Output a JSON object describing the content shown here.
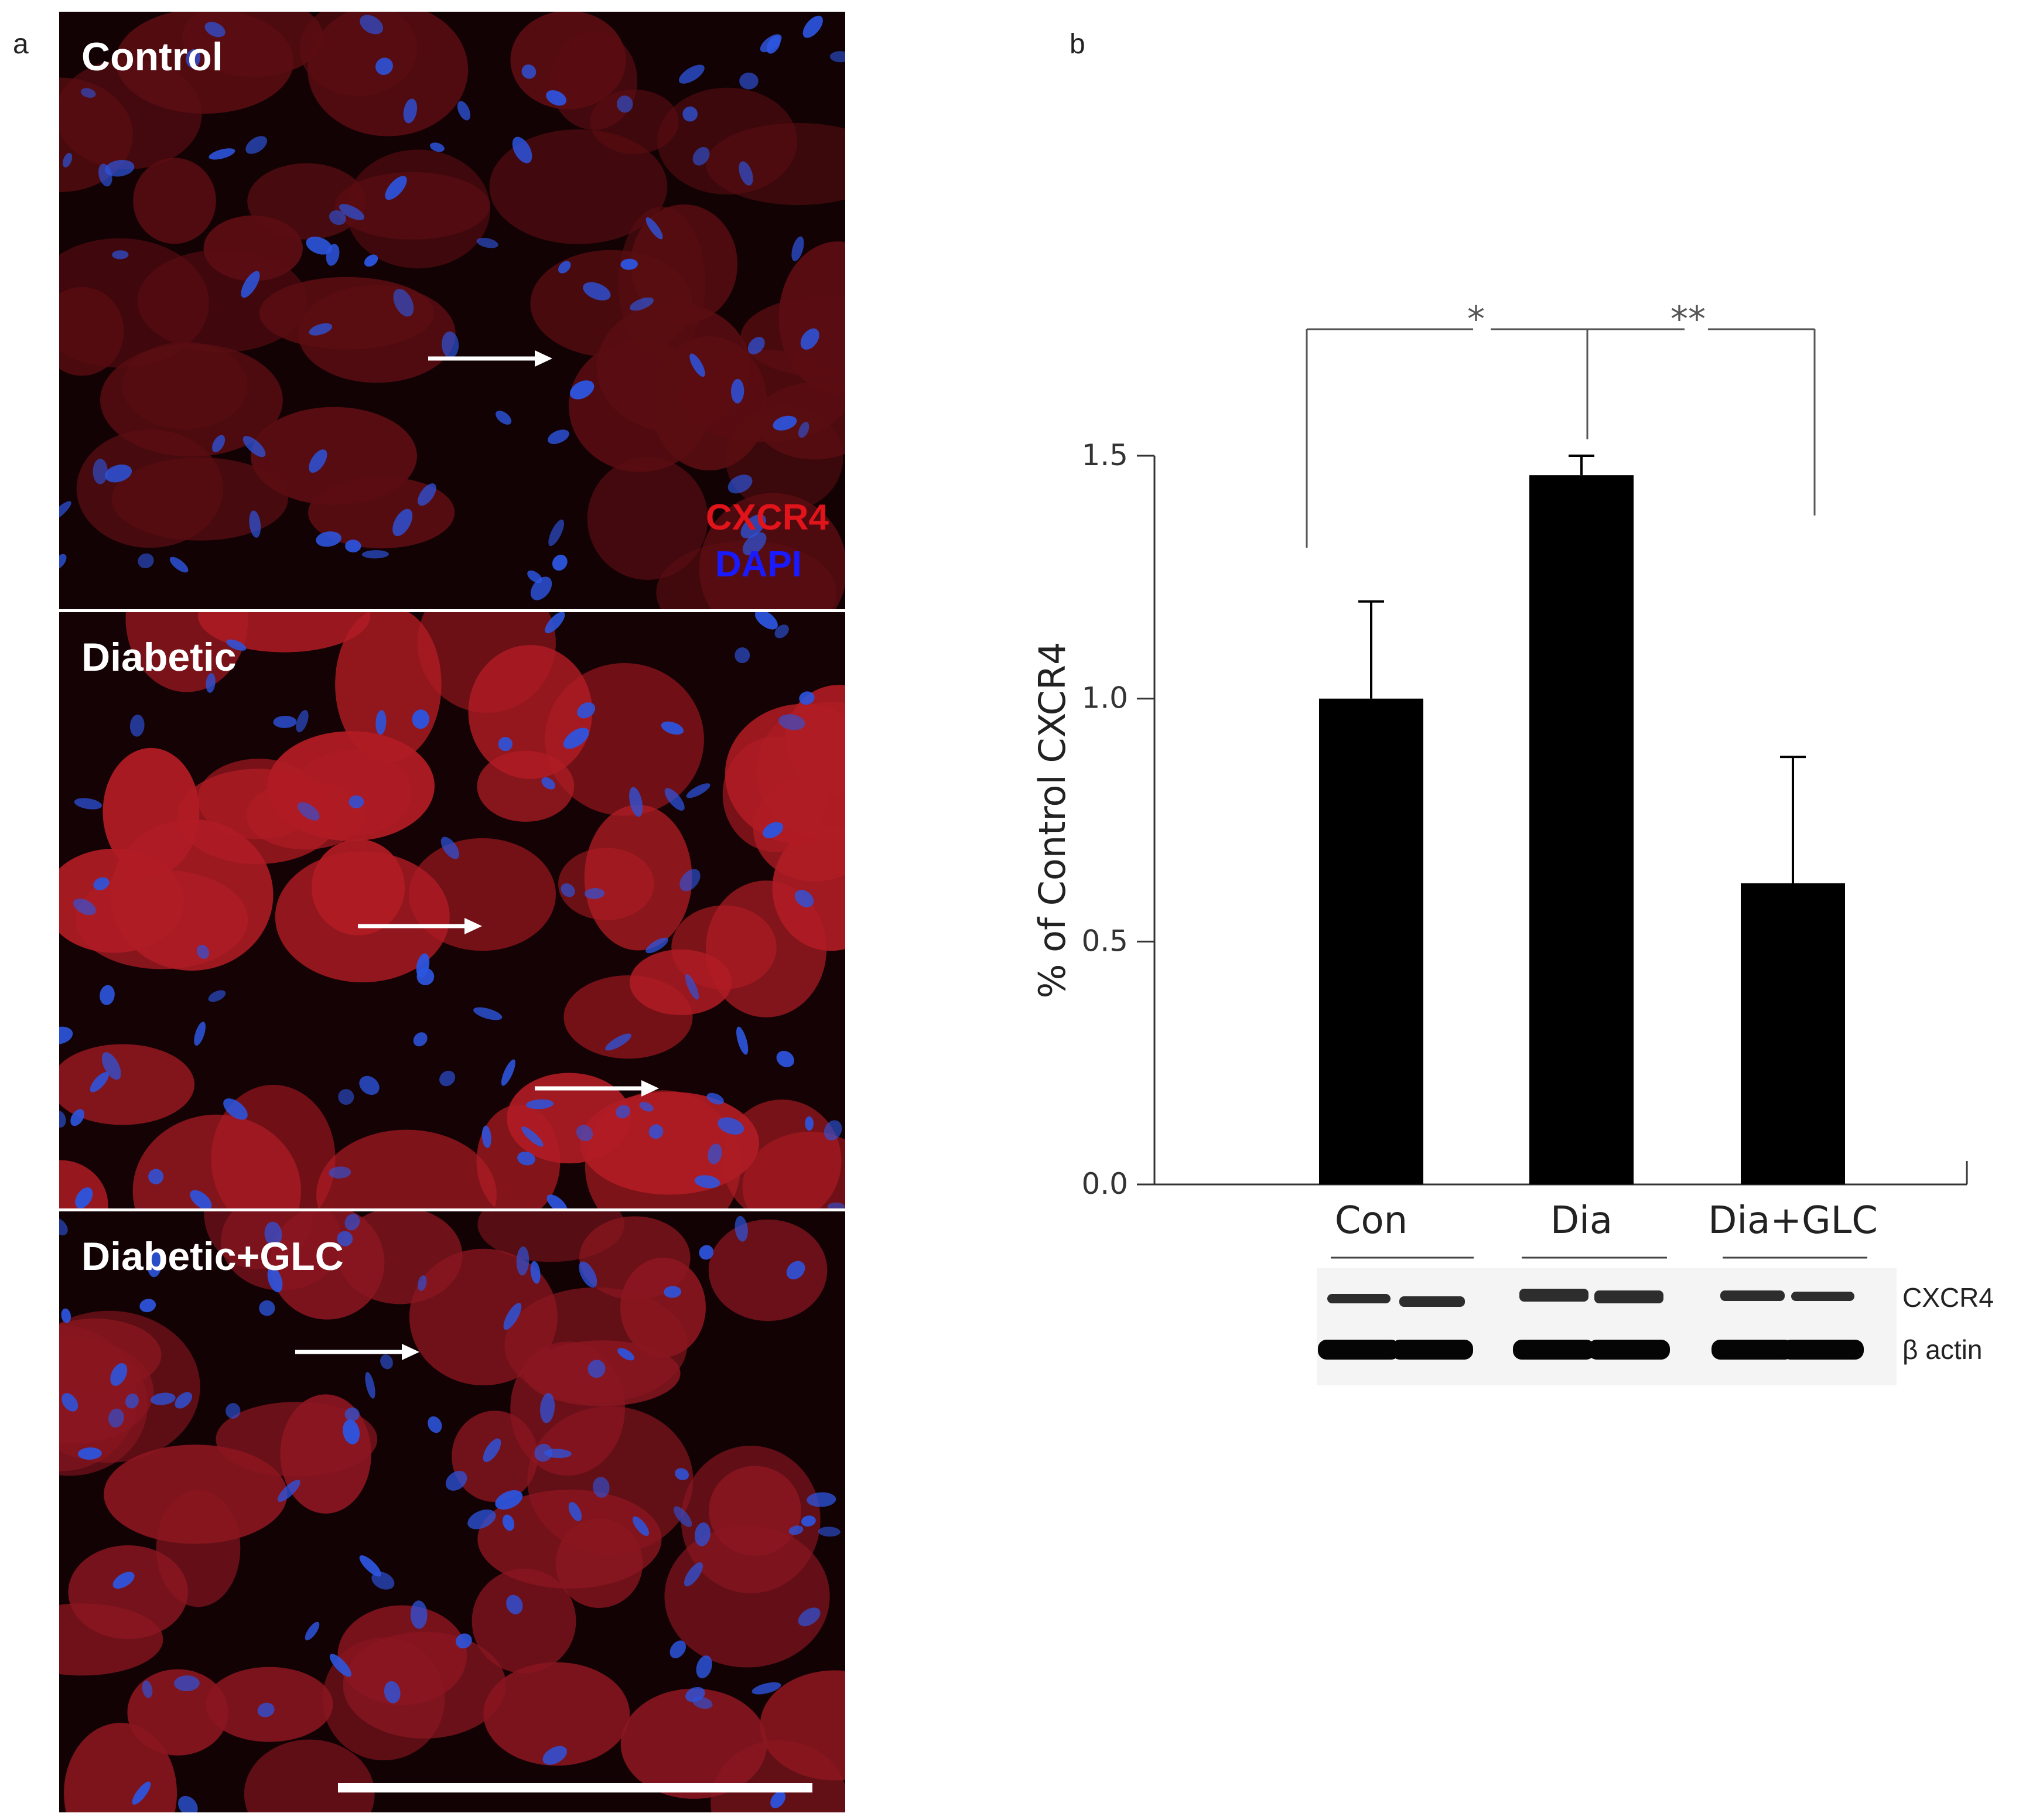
{
  "panel_labels": {
    "a": "a",
    "b": "b"
  },
  "micrographs": [
    {
      "title": "Control",
      "tint": "#5a0d12",
      "legend": [
        "CXCR4",
        "DAPI"
      ]
    },
    {
      "title": "Diabetic",
      "tint": "#b01c24"
    },
    {
      "title": "Diabetic+GLC",
      "tint": "#8a1620"
    }
  ],
  "legend_colors": {
    "CXCR4": "#e0141a",
    "DAPI": "#1a1aff"
  },
  "chart_data": {
    "type": "bar",
    "categories": [
      "Con",
      "Dia",
      "Dia+GLC"
    ],
    "values": [
      1.0,
      1.46,
      0.62
    ],
    "errors": [
      0.2,
      0.04,
      0.26
    ],
    "ylabel": "% of  Control CXCR4",
    "ylim": [
      0,
      1.5
    ],
    "yticks": [
      0.0,
      0.5,
      1.0,
      1.5
    ],
    "ytick_labels": [
      "0.0",
      "0.5",
      "1.0",
      "1.5"
    ],
    "bar_color": "#000000",
    "grid": false,
    "significance": [
      {
        "label": "*",
        "between": [
          "Con",
          "Dia"
        ]
      },
      {
        "label": "**",
        "between": [
          "Dia",
          "Dia+GLC"
        ]
      }
    ]
  },
  "blot": {
    "labels": [
      "CXCR4",
      "β actin"
    ]
  }
}
